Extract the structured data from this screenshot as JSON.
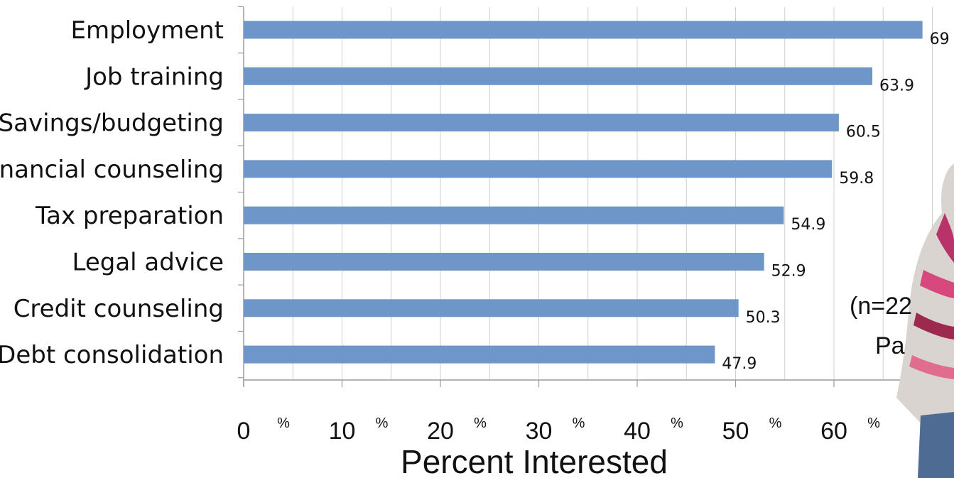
{
  "chart_data": {
    "type": "bar",
    "orientation": "horizontal",
    "categories": [
      "Employment",
      "Job training",
      "Savings/budgeting",
      "Financial counseling",
      "Tax preparation",
      "Legal advice",
      "Credit counseling",
      "Debt consolidation"
    ],
    "values": [
      69,
      63.9,
      60.5,
      59.8,
      54.9,
      52.9,
      50.3,
      47.9
    ],
    "value_labels": [
      "69",
      "63.9",
      "60.5",
      "59.8",
      "54.9",
      "52.9",
      "50.3",
      "47.9"
    ],
    "xlabel": "Percent Interested",
    "xlim": [
      0,
      70
    ],
    "x_ticks": [
      {
        "value": 0,
        "number": "0",
        "unit": "%"
      },
      {
        "value": 10,
        "number": "10",
        "unit": "%"
      },
      {
        "value": 20,
        "number": "20",
        "unit": "%"
      },
      {
        "value": 30,
        "number": "30",
        "unit": "%"
      },
      {
        "value": 40,
        "number": "40",
        "unit": "%"
      },
      {
        "value": 50,
        "number": "50",
        "unit": "%"
      },
      {
        "value": 60,
        "number": "60",
        "unit": "%"
      }
    ],
    "grid": "vertical",
    "bar_color": "#6f96c9",
    "grid_color": "#cfcfcf",
    "axis_color": "#9a9a9a"
  },
  "overlay": {
    "partial_text_1": "(n=22",
    "partial_text_2": "Pa"
  }
}
